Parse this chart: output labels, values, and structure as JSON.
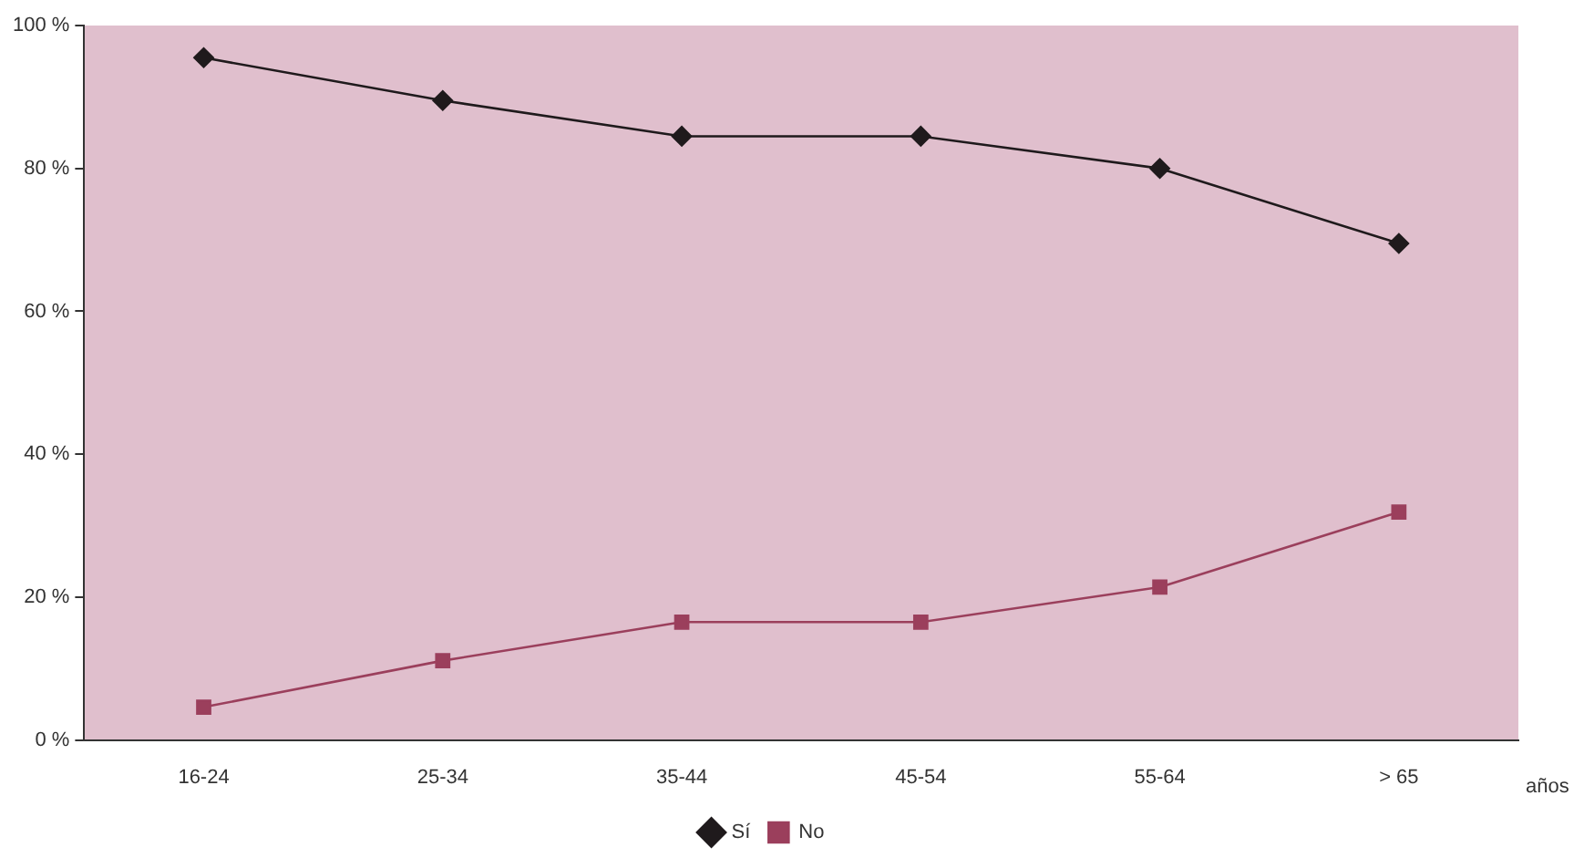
{
  "chart_data": {
    "type": "line",
    "categories": [
      "16-24",
      "25-34",
      "35-44",
      "45-54",
      "55-64",
      "> 65"
    ],
    "xlabel": "años",
    "series": [
      {
        "name": "Sí",
        "color": "#1f1a1c",
        "marker": "diamond",
        "values": [
          95.5,
          89.5,
          84.5,
          84.5,
          80,
          69.5
        ]
      },
      {
        "name": "No",
        "color": "#9b3f5c",
        "marker": "square",
        "values": [
          4.6,
          11.1,
          16.5,
          16.5,
          21.4,
          31.9
        ]
      }
    ],
    "ylim": [
      0,
      100
    ],
    "yticks": [
      {
        "value": 0,
        "label": "0 %"
      },
      {
        "value": 20,
        "label": "20 %"
      },
      {
        "value": 40,
        "label": "40 %"
      },
      {
        "value": 60,
        "label": "60 %"
      },
      {
        "value": 80,
        "label": "80 %"
      },
      {
        "value": 100,
        "label": "100 %"
      }
    ],
    "grid": false,
    "legend": "bottom",
    "line_style": "solid"
  }
}
